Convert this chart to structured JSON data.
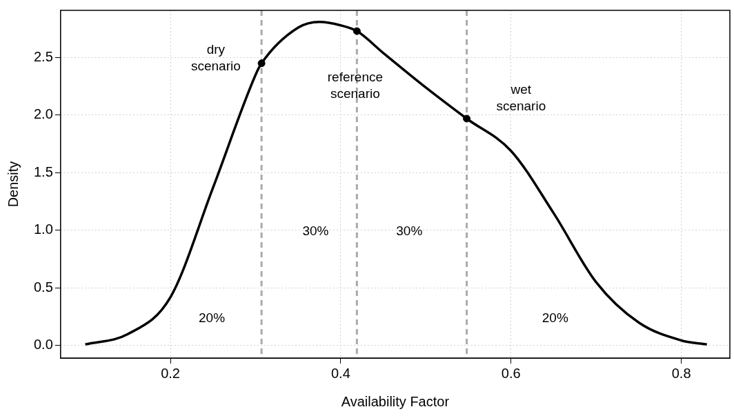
{
  "chart_data": {
    "type": "line",
    "xlabel": "Availability Factor",
    "ylabel": "Density",
    "xlim": [
      0.071,
      0.857
    ],
    "ylim": [
      -0.108,
      2.91
    ],
    "xticks": [
      0.2,
      0.4,
      0.6,
      0.8
    ],
    "yticks": [
      {
        "value": 0,
        "label": "0.0"
      },
      0.5,
      {
        "value": 1,
        "label": "1.0"
      },
      1.5,
      {
        "value": 2,
        "label": "2.0"
      },
      2.5
    ],
    "grid": true,
    "legend": false,
    "marker": "none",
    "line_style": "solid",
    "series": [
      {
        "type": "line",
        "color": "#000000",
        "x": [
          0.1,
          0.15,
          0.2,
          0.25,
          0.3,
          0.307,
          0.35,
          0.375,
          0.4,
          0.419,
          0.45,
          0.5,
          0.548,
          0.6,
          0.65,
          0.7,
          0.75,
          0.8,
          0.83
        ],
        "values": [
          0.01,
          0.1,
          0.42,
          1.37,
          2.35,
          2.45,
          2.76,
          2.81,
          2.78,
          2.73,
          2.54,
          2.24,
          1.97,
          1.69,
          1.15,
          0.55,
          0.2,
          0.045,
          0.01
        ]
      },
      {
        "type": "scatter",
        "color": "#000000",
        "marker": "circle",
        "x": [
          0.307,
          0.419,
          0.548
        ],
        "values": [
          2.45,
          2.73,
          1.97
        ]
      }
    ],
    "ref_lines": [
      {
        "axis": "x",
        "value": 0.307,
        "color": "#aaaaaa",
        "line_style": "dashed"
      },
      {
        "axis": "x",
        "value": 0.419,
        "color": "#aaaaaa",
        "line_style": "dashed"
      },
      {
        "axis": "x",
        "value": 0.548,
        "color": "#aaaaaa",
        "line_style": "dashed"
      }
    ],
    "annotations": [
      "dry scenario",
      {
        "text": "reference scenario",
        "x": 0.417,
        "y": 2.25
      },
      "wet scenario",
      "30%",
      "30%",
      "20%",
      "20%"
    ]
  }
}
